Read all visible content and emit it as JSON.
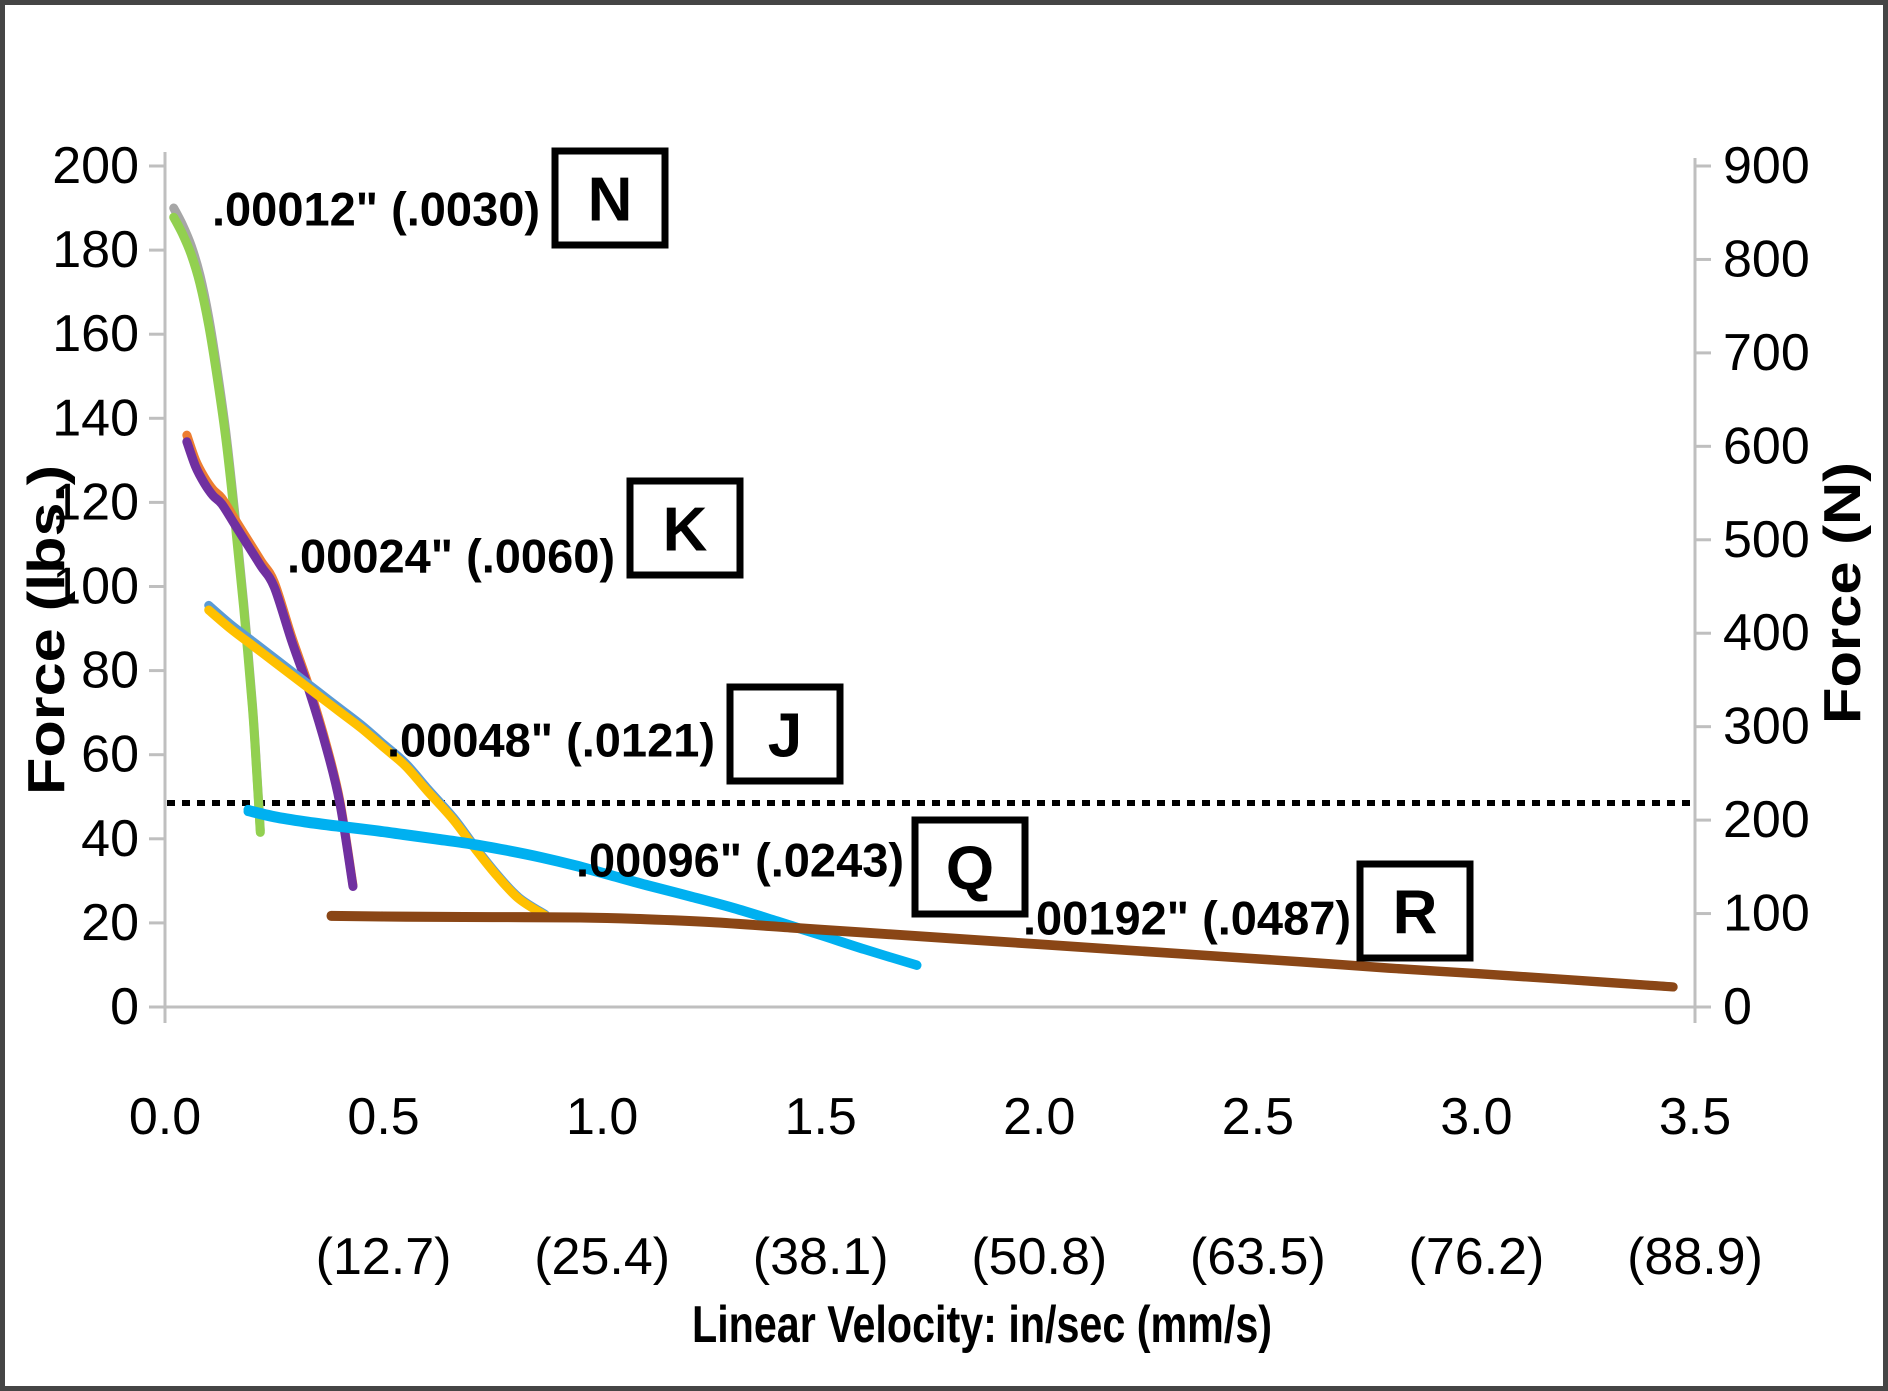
{
  "chart_data": {
    "type": "line",
    "xlabel": "Linear Velocity: in/sec (mm/s)",
    "ylabel_left": "Force (lbs.)",
    "ylabel_right": "Force (N)",
    "xlim": [
      0,
      3.5
    ],
    "ylim_left": [
      0,
      200
    ],
    "ylim_right": [
      0,
      900
    ],
    "grid": "off",
    "x_ticks": [
      {
        "in": "0.0",
        "mm": ""
      },
      {
        "in": "0.5",
        "mm": "(12.7)"
      },
      {
        "in": "1.0",
        "mm": "(25.4)"
      },
      {
        "in": "1.5",
        "mm": "(38.1)"
      },
      {
        "in": "2.0",
        "mm": "(50.8)"
      },
      {
        "in": "2.5",
        "mm": "(63.5)"
      },
      {
        "in": "3.0",
        "mm": "(76.2)"
      },
      {
        "in": "3.5",
        "mm": "(88.9)"
      }
    ],
    "y_ticks_left": [
      "0",
      "20",
      "40",
      "60",
      "80",
      "100",
      "120",
      "140",
      "160",
      "180",
      "200"
    ],
    "y_ticks_right": [
      "0",
      "100",
      "200",
      "300",
      "400",
      "500",
      "600",
      "700",
      "800",
      "900"
    ],
    "reference_line": {
      "style": "dotted",
      "color": "#000000",
      "value_lbs": 48.5
    },
    "lbs_to_N": 4.4482,
    "series": [
      {
        "id": "N",
        "letter": "N",
        "label": ".00012\" (.0030)",
        "letter_color": "#A9D18E",
        "color": "#92D050",
        "companion_color": "#A6A6A6",
        "points_in_lbs": [
          [
            0.02,
            190
          ],
          [
            0.04,
            186
          ],
          [
            0.06,
            181
          ],
          [
            0.08,
            174
          ],
          [
            0.1,
            164
          ],
          [
            0.12,
            151
          ],
          [
            0.14,
            136
          ],
          [
            0.16,
            117
          ],
          [
            0.18,
            96
          ],
          [
            0.2,
            72
          ],
          [
            0.21,
            56
          ],
          [
            0.218,
            42
          ]
        ]
      },
      {
        "id": "K",
        "letter": "K",
        "label": ".00024\" (.0060)",
        "letter_color": "#7030A0",
        "color": "#7030A0",
        "companion_color": "#ED7D31",
        "points_in_lbs": [
          [
            0.05,
            136
          ],
          [
            0.07,
            130
          ],
          [
            0.09,
            126
          ],
          [
            0.11,
            123
          ],
          [
            0.13,
            121
          ],
          [
            0.16,
            116
          ],
          [
            0.19,
            111
          ],
          [
            0.22,
            106
          ],
          [
            0.25,
            101
          ],
          [
            0.29,
            88
          ],
          [
            0.33,
            76
          ],
          [
            0.37,
            62
          ],
          [
            0.4,
            49
          ],
          [
            0.43,
            29
          ]
        ]
      },
      {
        "id": "J",
        "letter": "J",
        "label": ".00048\" (.0121)",
        "letter_color": "#FFC000",
        "color": "#FFC000",
        "companion_color": "#5B9BD5",
        "points_in_lbs": [
          [
            0.1,
            95.5
          ],
          [
            0.15,
            91
          ],
          [
            0.2,
            87
          ],
          [
            0.25,
            83
          ],
          [
            0.3,
            79
          ],
          [
            0.35,
            75
          ],
          [
            0.4,
            71
          ],
          [
            0.45,
            67
          ],
          [
            0.5,
            62.5
          ],
          [
            0.55,
            58
          ],
          [
            0.6,
            52
          ],
          [
            0.66,
            45
          ],
          [
            0.71,
            38
          ],
          [
            0.76,
            31.5
          ],
          [
            0.81,
            26
          ],
          [
            0.87,
            22
          ]
        ]
      },
      {
        "id": "Q",
        "letter": "Q",
        "label": ".00096\" (.0243)",
        "letter_color": "#00B0F0",
        "color": "#00B0F0",
        "companion_color": "#00B0F0",
        "points_in_lbs": [
          [
            0.19,
            47
          ],
          [
            0.25,
            45.5
          ],
          [
            0.32,
            44.3
          ],
          [
            0.4,
            43.2
          ],
          [
            0.48,
            42.2
          ],
          [
            0.55,
            41.2
          ],
          [
            0.62,
            40.2
          ],
          [
            0.7,
            39
          ],
          [
            0.78,
            37.5
          ],
          [
            0.86,
            35.8
          ],
          [
            0.94,
            33.8
          ],
          [
            1.02,
            31.5
          ],
          [
            1.1,
            29.2
          ],
          [
            1.2,
            26.5
          ],
          [
            1.3,
            23.7
          ],
          [
            1.4,
            20.5
          ],
          [
            1.5,
            17.2
          ],
          [
            1.6,
            13.8
          ],
          [
            1.72,
            10
          ]
        ]
      },
      {
        "id": "R",
        "letter": "R",
        "label": ".00192\" (.0487)",
        "letter_color": "#ED7D31",
        "color": "#8A4616",
        "companion_color": "#8A4616",
        "points_in_lbs": [
          [
            0.38,
            21.8
          ],
          [
            0.55,
            21.6
          ],
          [
            0.75,
            21.5
          ],
          [
            0.95,
            21.4
          ],
          [
            1.1,
            21.0
          ],
          [
            1.25,
            20.3
          ],
          [
            1.43,
            19.0
          ],
          [
            1.6,
            17.8
          ],
          [
            1.8,
            16.4
          ],
          [
            2.0,
            15.0
          ],
          [
            2.2,
            13.6
          ],
          [
            2.4,
            12.2
          ],
          [
            2.6,
            10.8
          ],
          [
            2.8,
            9.3
          ],
          [
            3.0,
            8.0
          ],
          [
            3.2,
            6.6
          ],
          [
            3.45,
            4.8
          ]
        ]
      }
    ],
    "axis_color": "#BFBFBF"
  }
}
